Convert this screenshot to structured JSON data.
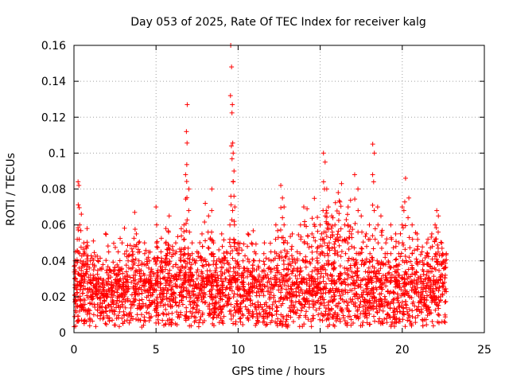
{
  "chart_data": {
    "type": "scatter",
    "title": "Day 053 of 2025, Rate Of TEC Index for receiver kalg",
    "xlabel": "GPS time / hours",
    "ylabel": "ROTI / TECUs",
    "xlim": [
      0,
      25
    ],
    "ylim": [
      0,
      0.16
    ],
    "x_ticks": [
      0,
      5,
      10,
      15,
      20,
      25
    ],
    "y_ticks": [
      0,
      0.02,
      0.04,
      0.06,
      0.08,
      0.1,
      0.12,
      0.14,
      0.16
    ],
    "x_tick_labels": [
      "0",
      "5",
      "10",
      "15",
      "20",
      "25"
    ],
    "y_tick_labels": [
      "0",
      "0.02",
      "0.04",
      "0.06",
      "0.08",
      "0.1",
      "0.12",
      "0.14",
      "0.16"
    ],
    "grid": true,
    "marker": "+",
    "color": "#ff0000",
    "series": [
      {
        "x": [
          0.1,
          0.2,
          0.25,
          0.3,
          0.35,
          0.4,
          0.45,
          0.5,
          0.6,
          0.8,
          1.0,
          1.2,
          1.5,
          1.8,
          2.0,
          2.3,
          2.6,
          3.0,
          3.3,
          3.7,
          3.8,
          4.0,
          4.3,
          4.6,
          5.0,
          5.3,
          5.6,
          5.8,
          6.0,
          6.2,
          6.5,
          6.7,
          6.8,
          6.85,
          6.9,
          7.0,
          7.2,
          7.5,
          7.8,
          8.0,
          8.2,
          8.4,
          8.5,
          8.7,
          9.0,
          9.3,
          9.5,
          9.55,
          9.6,
          9.65,
          9.7,
          9.75,
          9.8,
          10.0,
          10.3,
          10.6,
          11.0,
          11.3,
          11.6,
          12.0,
          12.3,
          12.6,
          12.7,
          12.8,
          13.0,
          13.3,
          13.6,
          13.8,
          14.0,
          14.2,
          14.5,
          14.8,
          15.0,
          15.2,
          15.3,
          15.4,
          15.5,
          15.7,
          15.9,
          16.1,
          16.3,
          16.5,
          16.7,
          16.9,
          17.1,
          17.3,
          17.5,
          17.8,
          18.0,
          18.2,
          18.3,
          18.5,
          18.7,
          19.0,
          19.3,
          19.6,
          19.8,
          20.0,
          20.1,
          20.2,
          20.4,
          20.6,
          20.9,
          21.2,
          21.5,
          21.8,
          22.0,
          22.1,
          22.2,
          22.4,
          22.6
        ],
        "y": [
          0.045,
          0.052,
          0.084,
          0.082,
          0.06,
          0.04,
          0.066,
          0.03,
          0.05,
          0.058,
          0.04,
          0.035,
          0.03,
          0.025,
          0.02,
          0.028,
          0.032,
          0.03,
          0.04,
          0.067,
          0.055,
          0.045,
          0.05,
          0.04,
          0.07,
          0.045,
          0.058,
          0.065,
          0.048,
          0.05,
          0.045,
          0.06,
          0.088,
          0.112,
          0.127,
          0.08,
          0.05,
          0.045,
          0.055,
          0.072,
          0.065,
          0.08,
          0.05,
          0.04,
          0.055,
          0.045,
          0.06,
          0.16,
          0.148,
          0.127,
          0.1,
          0.09,
          0.07,
          0.05,
          0.04,
          0.055,
          0.045,
          0.04,
          0.05,
          0.045,
          0.06,
          0.082,
          0.075,
          0.07,
          0.05,
          0.055,
          0.045,
          0.06,
          0.07,
          0.069,
          0.055,
          0.045,
          0.06,
          0.1,
          0.095,
          0.08,
          0.07,
          0.065,
          0.06,
          0.078,
          0.083,
          0.06,
          0.07,
          0.055,
          0.088,
          0.08,
          0.065,
          0.055,
          0.06,
          0.105,
          0.1,
          0.07,
          0.065,
          0.05,
          0.06,
          0.055,
          0.05,
          0.07,
          0.068,
          0.086,
          0.075,
          0.06,
          0.055,
          0.045,
          0.05,
          0.055,
          0.06,
          0.068,
          0.065,
          0.05,
          0.04
        ]
      }
    ],
    "dense_band": {
      "x_range": [
        0,
        22.7
      ],
      "y_base_range": [
        0.003,
        0.03
      ]
    }
  }
}
